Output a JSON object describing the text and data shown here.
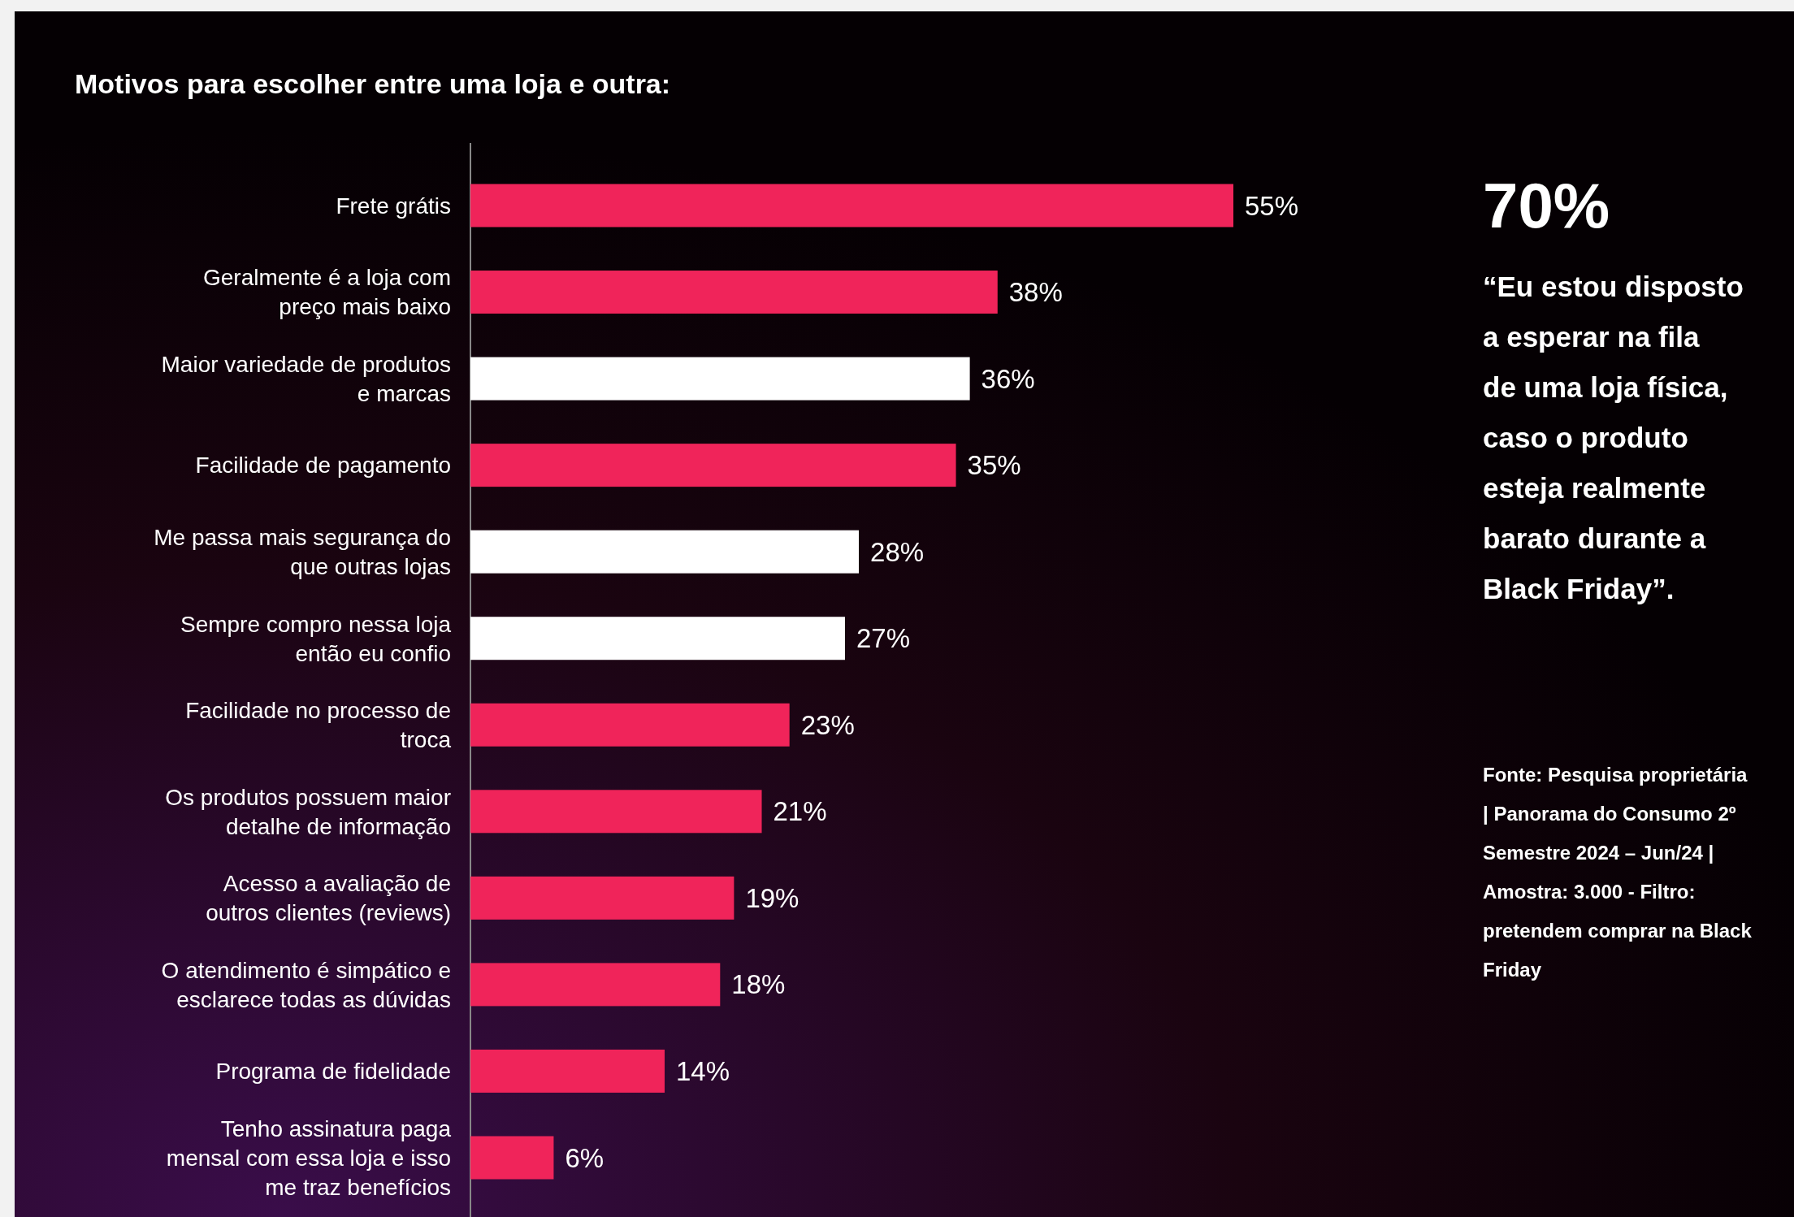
{
  "chart_data": {
    "type": "bar",
    "orientation": "horizontal",
    "title": "Motivos para escolher entre uma loja e outra:",
    "categories": [
      "Frete grátis",
      "Geralmente é a loja com preço mais baixo",
      "Maior variedade de produtos e marcas",
      "Facilidade de pagamento",
      "Me passa mais segurança do que outras lojas",
      "Sempre compro nessa loja então eu confio",
      "Facilidade no processo de troca",
      "Os produtos possuem maior detalhe de informação",
      "Acesso a avaliação de outros clientes (reviews)",
      "O atendimento é simpático e esclarece todas as dúvidas",
      "Programa de fidelidade",
      "Tenho assinatura paga mensal com essa loja e isso me traz benefícios"
    ],
    "values": [
      55,
      38,
      36,
      35,
      28,
      27,
      23,
      21,
      19,
      18,
      14,
      6
    ],
    "colors": [
      "#f0245a",
      "#f0245a",
      "#ffffff",
      "#f0245a",
      "#ffffff",
      "#ffffff",
      "#f0245a",
      "#f0245a",
      "#f0245a",
      "#f0245a",
      "#f0245a",
      "#f0245a"
    ],
    "value_labels": [
      "55%",
      "38%",
      "36%",
      "35%",
      "28%",
      "27%",
      "23%",
      "21%",
      "19%",
      "18%",
      "14%",
      "6%"
    ],
    "annotations": [
      "70%",
      "“Eu estou disposto a esperar na fila de uma loja física, caso o produto esteja realmente barato durante a Black Friday”.",
      "Fonte: Pesquisa proprietária | Panorama do Consumo 2º Semestre 2024 – Jun/24 | Amostra: 3.000 - Filtro: pretendem comprar na Black Friday"
    ]
  }
}
